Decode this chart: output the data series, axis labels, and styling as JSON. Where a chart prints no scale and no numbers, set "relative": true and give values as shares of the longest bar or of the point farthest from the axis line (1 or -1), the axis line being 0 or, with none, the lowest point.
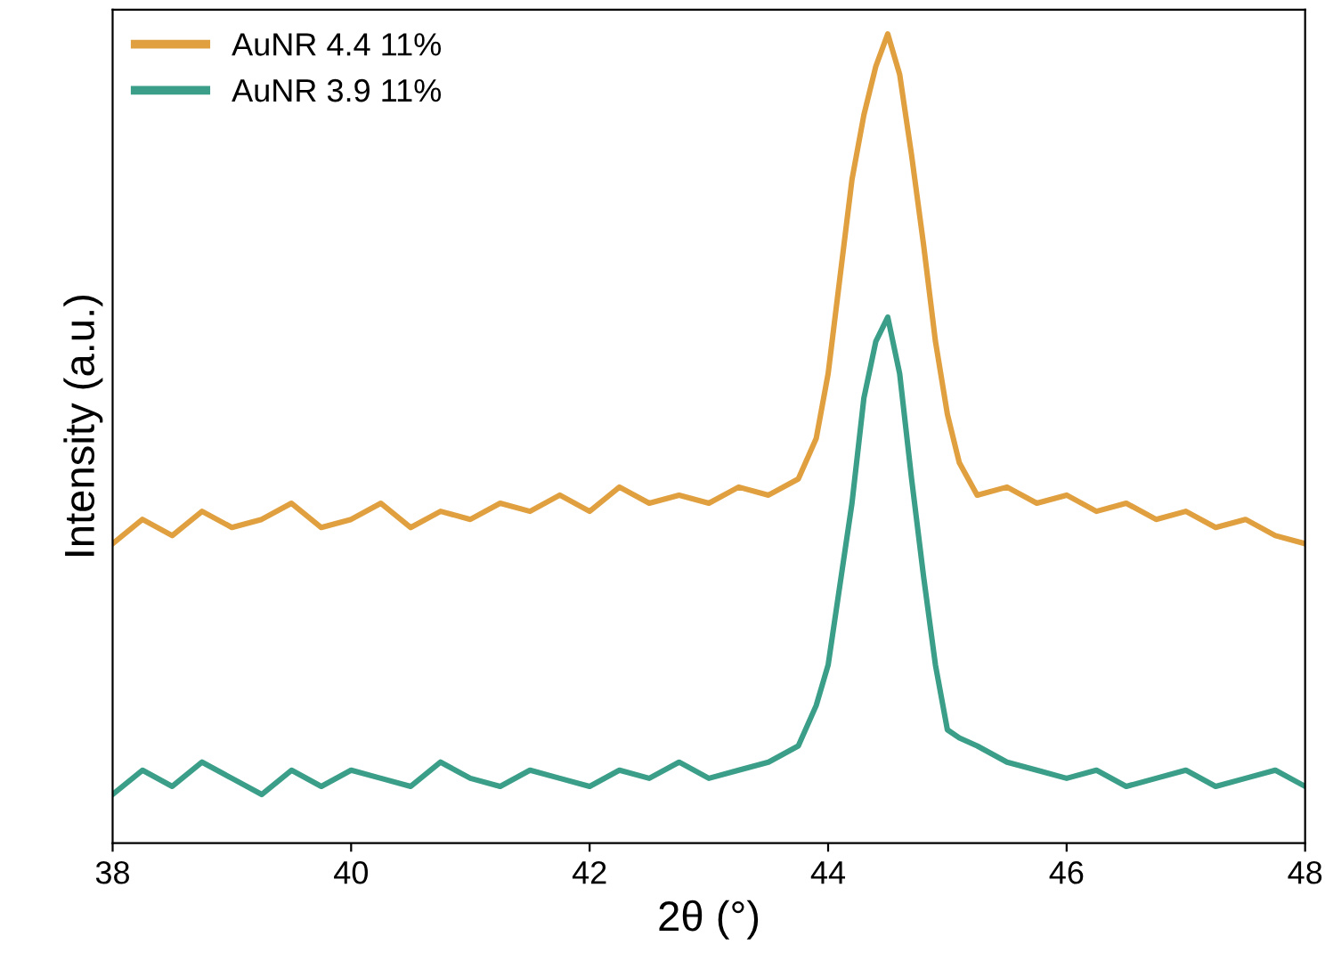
{
  "chart_data": {
    "type": "line",
    "xlabel": "2θ (°)",
    "ylabel": "Intensity (a.u.)",
    "relative": true,
    "xlim": [
      38,
      48
    ],
    "xticks": [
      38,
      40,
      42,
      44,
      46,
      48
    ],
    "legend": "top left",
    "grid": false,
    "tick_labels": "x",
    "series": [
      {
        "name": "AuNR 4.4 11%",
        "color": "#e0a040",
        "x": [
          38,
          38.25,
          38.5,
          38.75,
          39,
          39.25,
          39.5,
          39.75,
          40,
          40.25,
          40.5,
          40.75,
          41,
          41.25,
          41.5,
          41.75,
          42,
          42.25,
          42.5,
          42.75,
          43,
          43.25,
          43.5,
          43.75,
          43.9,
          44.0,
          44.1,
          44.2,
          44.3,
          44.4,
          44.5,
          44.6,
          44.7,
          44.8,
          44.9,
          45.0,
          45.1,
          45.25,
          45.5,
          45.75,
          46,
          46.25,
          46.5,
          46.75,
          47,
          47.25,
          47.5,
          47.75,
          48
        ],
        "values": [
          0.37,
          0.4,
          0.38,
          0.41,
          0.39,
          0.4,
          0.42,
          0.39,
          0.4,
          0.42,
          0.39,
          0.41,
          0.4,
          0.42,
          0.41,
          0.43,
          0.41,
          0.44,
          0.42,
          0.43,
          0.42,
          0.44,
          0.43,
          0.45,
          0.5,
          0.58,
          0.7,
          0.82,
          0.9,
          0.96,
          1.0,
          0.95,
          0.85,
          0.74,
          0.62,
          0.53,
          0.47,
          0.43,
          0.44,
          0.42,
          0.43,
          0.41,
          0.42,
          0.4,
          0.41,
          0.39,
          0.4,
          0.38,
          0.37
        ]
      },
      {
        "name": "AuNR 3.9 11%",
        "color": "#3a9e88",
        "x": [
          38,
          38.25,
          38.5,
          38.75,
          39,
          39.25,
          39.5,
          39.75,
          40,
          40.25,
          40.5,
          40.75,
          41,
          41.25,
          41.5,
          41.75,
          42,
          42.25,
          42.5,
          42.75,
          43,
          43.25,
          43.5,
          43.75,
          43.9,
          44.0,
          44.1,
          44.2,
          44.3,
          44.4,
          44.5,
          44.6,
          44.7,
          44.8,
          44.9,
          45.0,
          45.1,
          45.25,
          45.5,
          45.75,
          46,
          46.25,
          46.5,
          46.75,
          47,
          47.25,
          47.5,
          47.75,
          48
        ],
        "values": [
          0.06,
          0.09,
          0.07,
          0.1,
          0.08,
          0.06,
          0.09,
          0.07,
          0.09,
          0.08,
          0.07,
          0.1,
          0.08,
          0.07,
          0.09,
          0.08,
          0.07,
          0.09,
          0.08,
          0.1,
          0.08,
          0.09,
          0.1,
          0.12,
          0.17,
          0.22,
          0.32,
          0.42,
          0.55,
          0.62,
          0.65,
          0.58,
          0.45,
          0.33,
          0.22,
          0.14,
          0.13,
          0.12,
          0.1,
          0.09,
          0.08,
          0.09,
          0.07,
          0.08,
          0.09,
          0.07,
          0.08,
          0.09,
          0.07
        ]
      }
    ]
  }
}
